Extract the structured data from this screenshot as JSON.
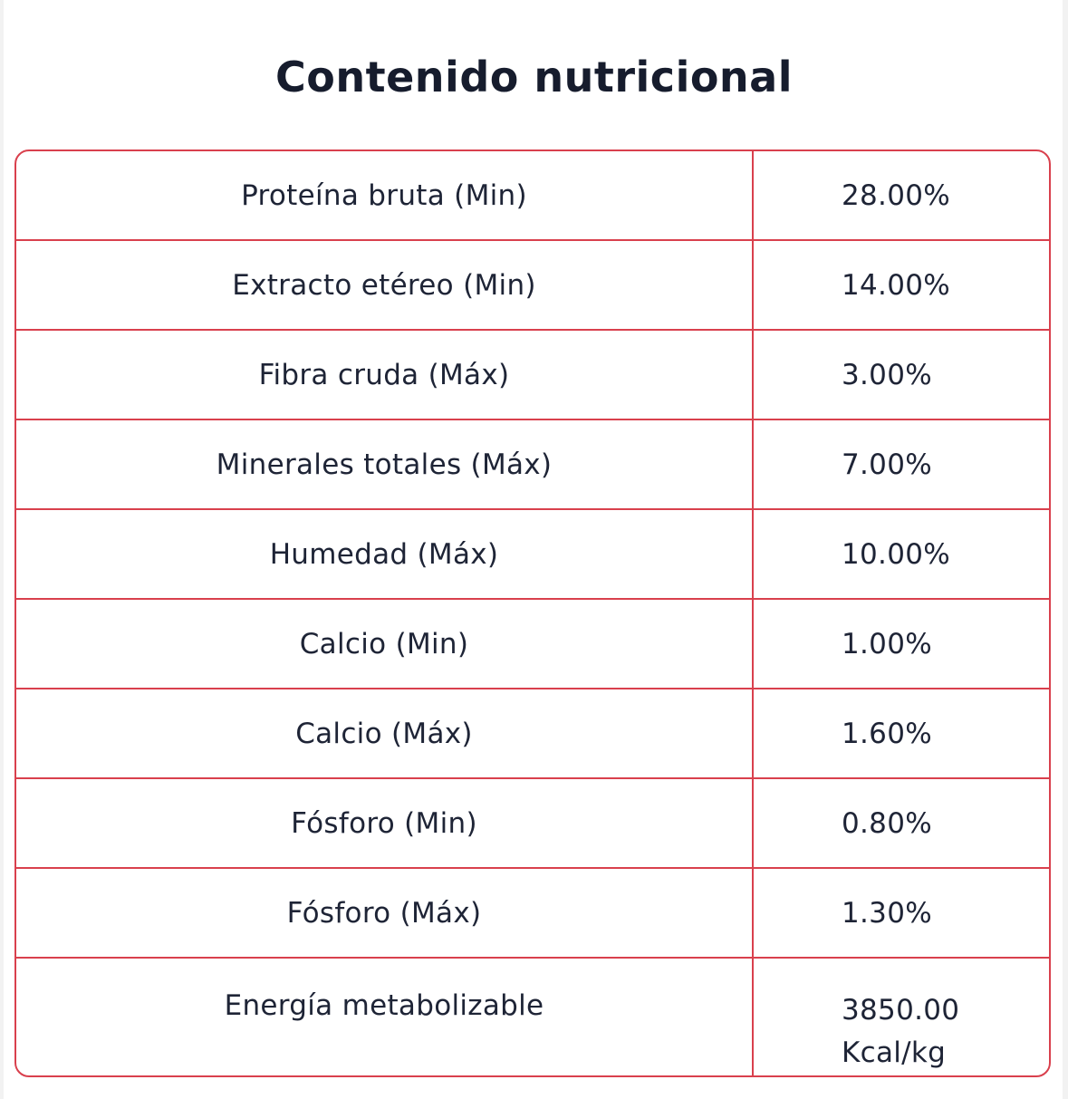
{
  "title": "Contenido nutricional",
  "rows": [
    {
      "label": "Proteína bruta (Min)",
      "value": "28.00%"
    },
    {
      "label": "Extracto etéreo (Min)",
      "value": "14.00%"
    },
    {
      "label": "Fibra cruda (Máx)",
      "value": "3.00%"
    },
    {
      "label": "Minerales totales (Máx)",
      "value": "7.00%"
    },
    {
      "label": "Humedad (Máx)",
      "value": "10.00%"
    },
    {
      "label": "Calcio (Min)",
      "value": "1.00%"
    },
    {
      "label": "Calcio (Máx)",
      "value": "1.60%"
    },
    {
      "label": "Fósforo (Min)",
      "value": "0.80%"
    },
    {
      "label": "Fósforo (Máx)",
      "value": "1.30%"
    },
    {
      "label": "Energía metabolizable",
      "value_line1": "3850.00",
      "value_line2": "Kcal/kg"
    }
  ],
  "colors": {
    "border": "#d9404d",
    "text": "#1e2436",
    "title": "#161c2d"
  }
}
